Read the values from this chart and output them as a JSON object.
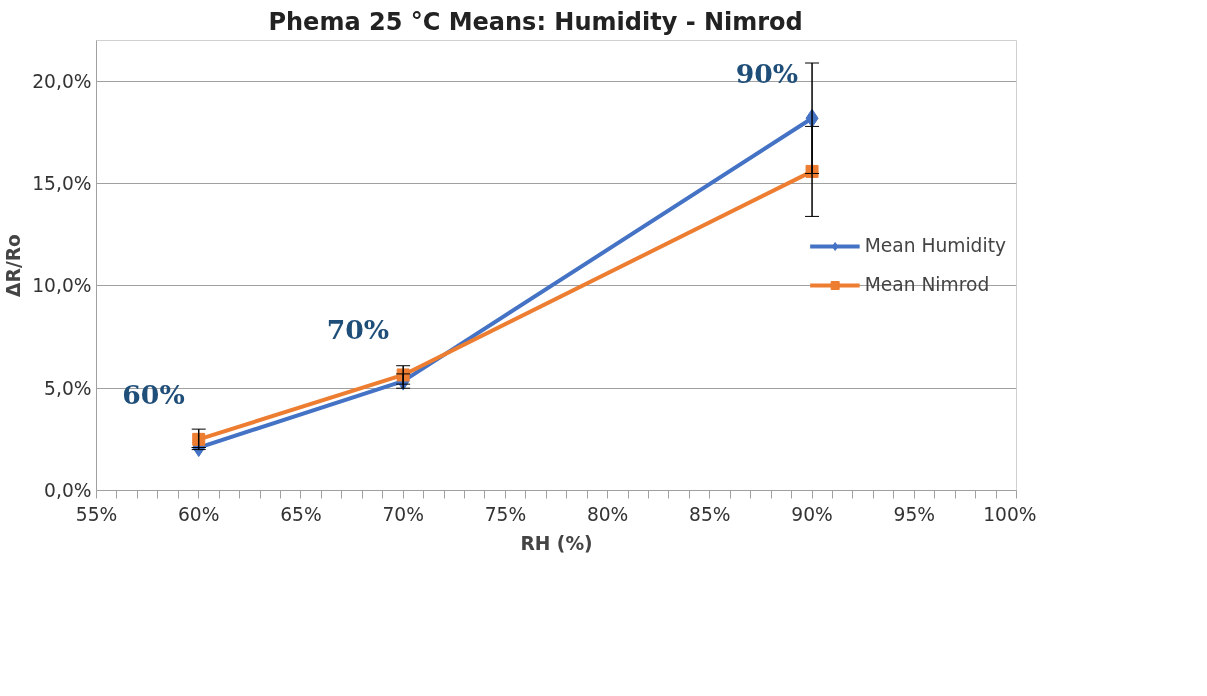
{
  "chart_data": {
    "type": "line",
    "title": "Phema 25 °C     Means:  Humidity - Nimrod",
    "xlabel": "RH (%)",
    "ylabel": "ΔR/Ro",
    "x": [
      60,
      70,
      90
    ],
    "series": [
      {
        "name": "Mean Humidity",
        "color": "#4472c4",
        "marker": "diamond",
        "values": [
          2.1,
          5.35,
          18.2
        ],
        "errors": [
          null,
          0.35,
          2.7
        ]
      },
      {
        "name": "Mean Nimrod",
        "color": "#ed7d31",
        "marker": "square",
        "values": [
          2.5,
          5.65,
          15.6
        ],
        "errors": [
          0.5,
          0.45,
          2.2
        ]
      }
    ],
    "xlim": [
      55,
      100
    ],
    "xticks": [
      {
        "value": 55,
        "label": "55%"
      },
      {
        "value": 56,
        "label": null
      },
      {
        "value": 57,
        "label": null
      },
      {
        "value": 58,
        "label": null
      },
      {
        "value": 59,
        "label": null
      },
      {
        "value": 60,
        "label": "60%"
      },
      {
        "value": 61,
        "label": null
      },
      {
        "value": 62,
        "label": null
      },
      {
        "value": 63,
        "label": null
      },
      {
        "value": 64,
        "label": null
      },
      {
        "value": 65,
        "label": "65%"
      },
      {
        "value": 66,
        "label": null
      },
      {
        "value": 67,
        "label": null
      },
      {
        "value": 68,
        "label": null
      },
      {
        "value": 69,
        "label": null
      },
      {
        "value": 70,
        "label": "70%"
      },
      {
        "value": 71,
        "label": null
      },
      {
        "value": 72,
        "label": null
      },
      {
        "value": 73,
        "label": null
      },
      {
        "value": 74,
        "label": null
      },
      {
        "value": 75,
        "label": "75%"
      },
      {
        "value": 76,
        "label": null
      },
      {
        "value": 77,
        "label": null
      },
      {
        "value": 78,
        "label": null
      },
      {
        "value": 79,
        "label": null
      },
      {
        "value": 80,
        "label": "80%"
      },
      {
        "value": 81,
        "label": null
      },
      {
        "value": 82,
        "label": null
      },
      {
        "value": 83,
        "label": null
      },
      {
        "value": 84,
        "label": null
      },
      {
        "value": 85,
        "label": "85%"
      },
      {
        "value": 86,
        "label": null
      },
      {
        "value": 87,
        "label": null
      },
      {
        "value": 88,
        "label": null
      },
      {
        "value": 89,
        "label": null
      },
      {
        "value": 90,
        "label": "90%"
      },
      {
        "value": 91,
        "label": null
      },
      {
        "value": 92,
        "label": null
      },
      {
        "value": 93,
        "label": null
      },
      {
        "value": 94,
        "label": null
      },
      {
        "value": 95,
        "label": "95%"
      },
      {
        "value": 96,
        "label": null
      },
      {
        "value": 97,
        "label": null
      },
      {
        "value": 98,
        "label": null
      },
      {
        "value": 99,
        "label": null
      },
      {
        "value": 100,
        "label": "100%"
      }
    ],
    "ylim": [
      0,
      22
    ],
    "yticks": [
      {
        "value": 0,
        "label": "0,0%"
      },
      {
        "value": 5,
        "label": "5,0%"
      },
      {
        "value": 10,
        "label": "10,0%"
      },
      {
        "value": 15,
        "label": "15,0%"
      },
      {
        "value": 20,
        "label": "20,0%"
      }
    ],
    "grid": "y",
    "legend": "right",
    "line_style": "solid",
    "annotations": [
      "60%",
      "70%",
      "90%"
    ]
  }
}
